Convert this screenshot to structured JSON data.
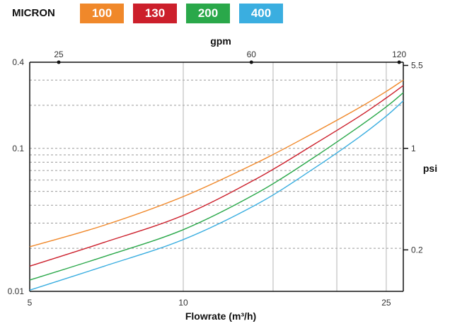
{
  "legend": {
    "title": "MICRON",
    "items": [
      {
        "label": "100",
        "color": "#f0882a"
      },
      {
        "label": "130",
        "color": "#cc1f2b"
      },
      {
        "label": "200",
        "color": "#2aa84a"
      },
      {
        "label": "400",
        "color": "#3aaee0"
      }
    ]
  },
  "chart_data": {
    "type": "line",
    "xlabel": "Flowrate  (m³/h)",
    "x_scale": "log",
    "xlim": [
      5,
      27
    ],
    "x_ticks": [
      "5",
      "10",
      "25"
    ],
    "y_scale": "log",
    "ylim": [
      0.01,
      0.4
    ],
    "y_ticks": [
      "0.01",
      "0.1",
      "0.4"
    ],
    "secondary_x": {
      "label": "gpm",
      "ticks": [
        "25",
        "60",
        "120"
      ]
    },
    "secondary_y": {
      "label": "psi",
      "ticks": [
        "5.5",
        "1",
        "0.2"
      ]
    },
    "grid": true,
    "series": [
      {
        "name": "100",
        "color": "#f0882a",
        "x": [
          5,
          7,
          10,
          14,
          18,
          22,
          25,
          27
        ],
        "y": [
          0.0205,
          0.029,
          0.046,
          0.08,
          0.128,
          0.19,
          0.25,
          0.3
        ]
      },
      {
        "name": "130",
        "color": "#cc1f2b",
        "x": [
          5,
          7,
          10,
          14,
          18,
          22,
          25,
          27
        ],
        "y": [
          0.015,
          0.022,
          0.034,
          0.062,
          0.106,
          0.165,
          0.225,
          0.275
        ]
      },
      {
        "name": "200",
        "color": "#2aa84a",
        "x": [
          5,
          7,
          10,
          14,
          18,
          22,
          25,
          27
        ],
        "y": [
          0.012,
          0.0175,
          0.027,
          0.049,
          0.086,
          0.14,
          0.195,
          0.245
        ]
      },
      {
        "name": "400",
        "color": "#3aaee0",
        "x": [
          5,
          7,
          10,
          14,
          18,
          22,
          25,
          27
        ],
        "y": [
          0.0102,
          0.015,
          0.023,
          0.041,
          0.072,
          0.118,
          0.168,
          0.215
        ]
      }
    ]
  }
}
